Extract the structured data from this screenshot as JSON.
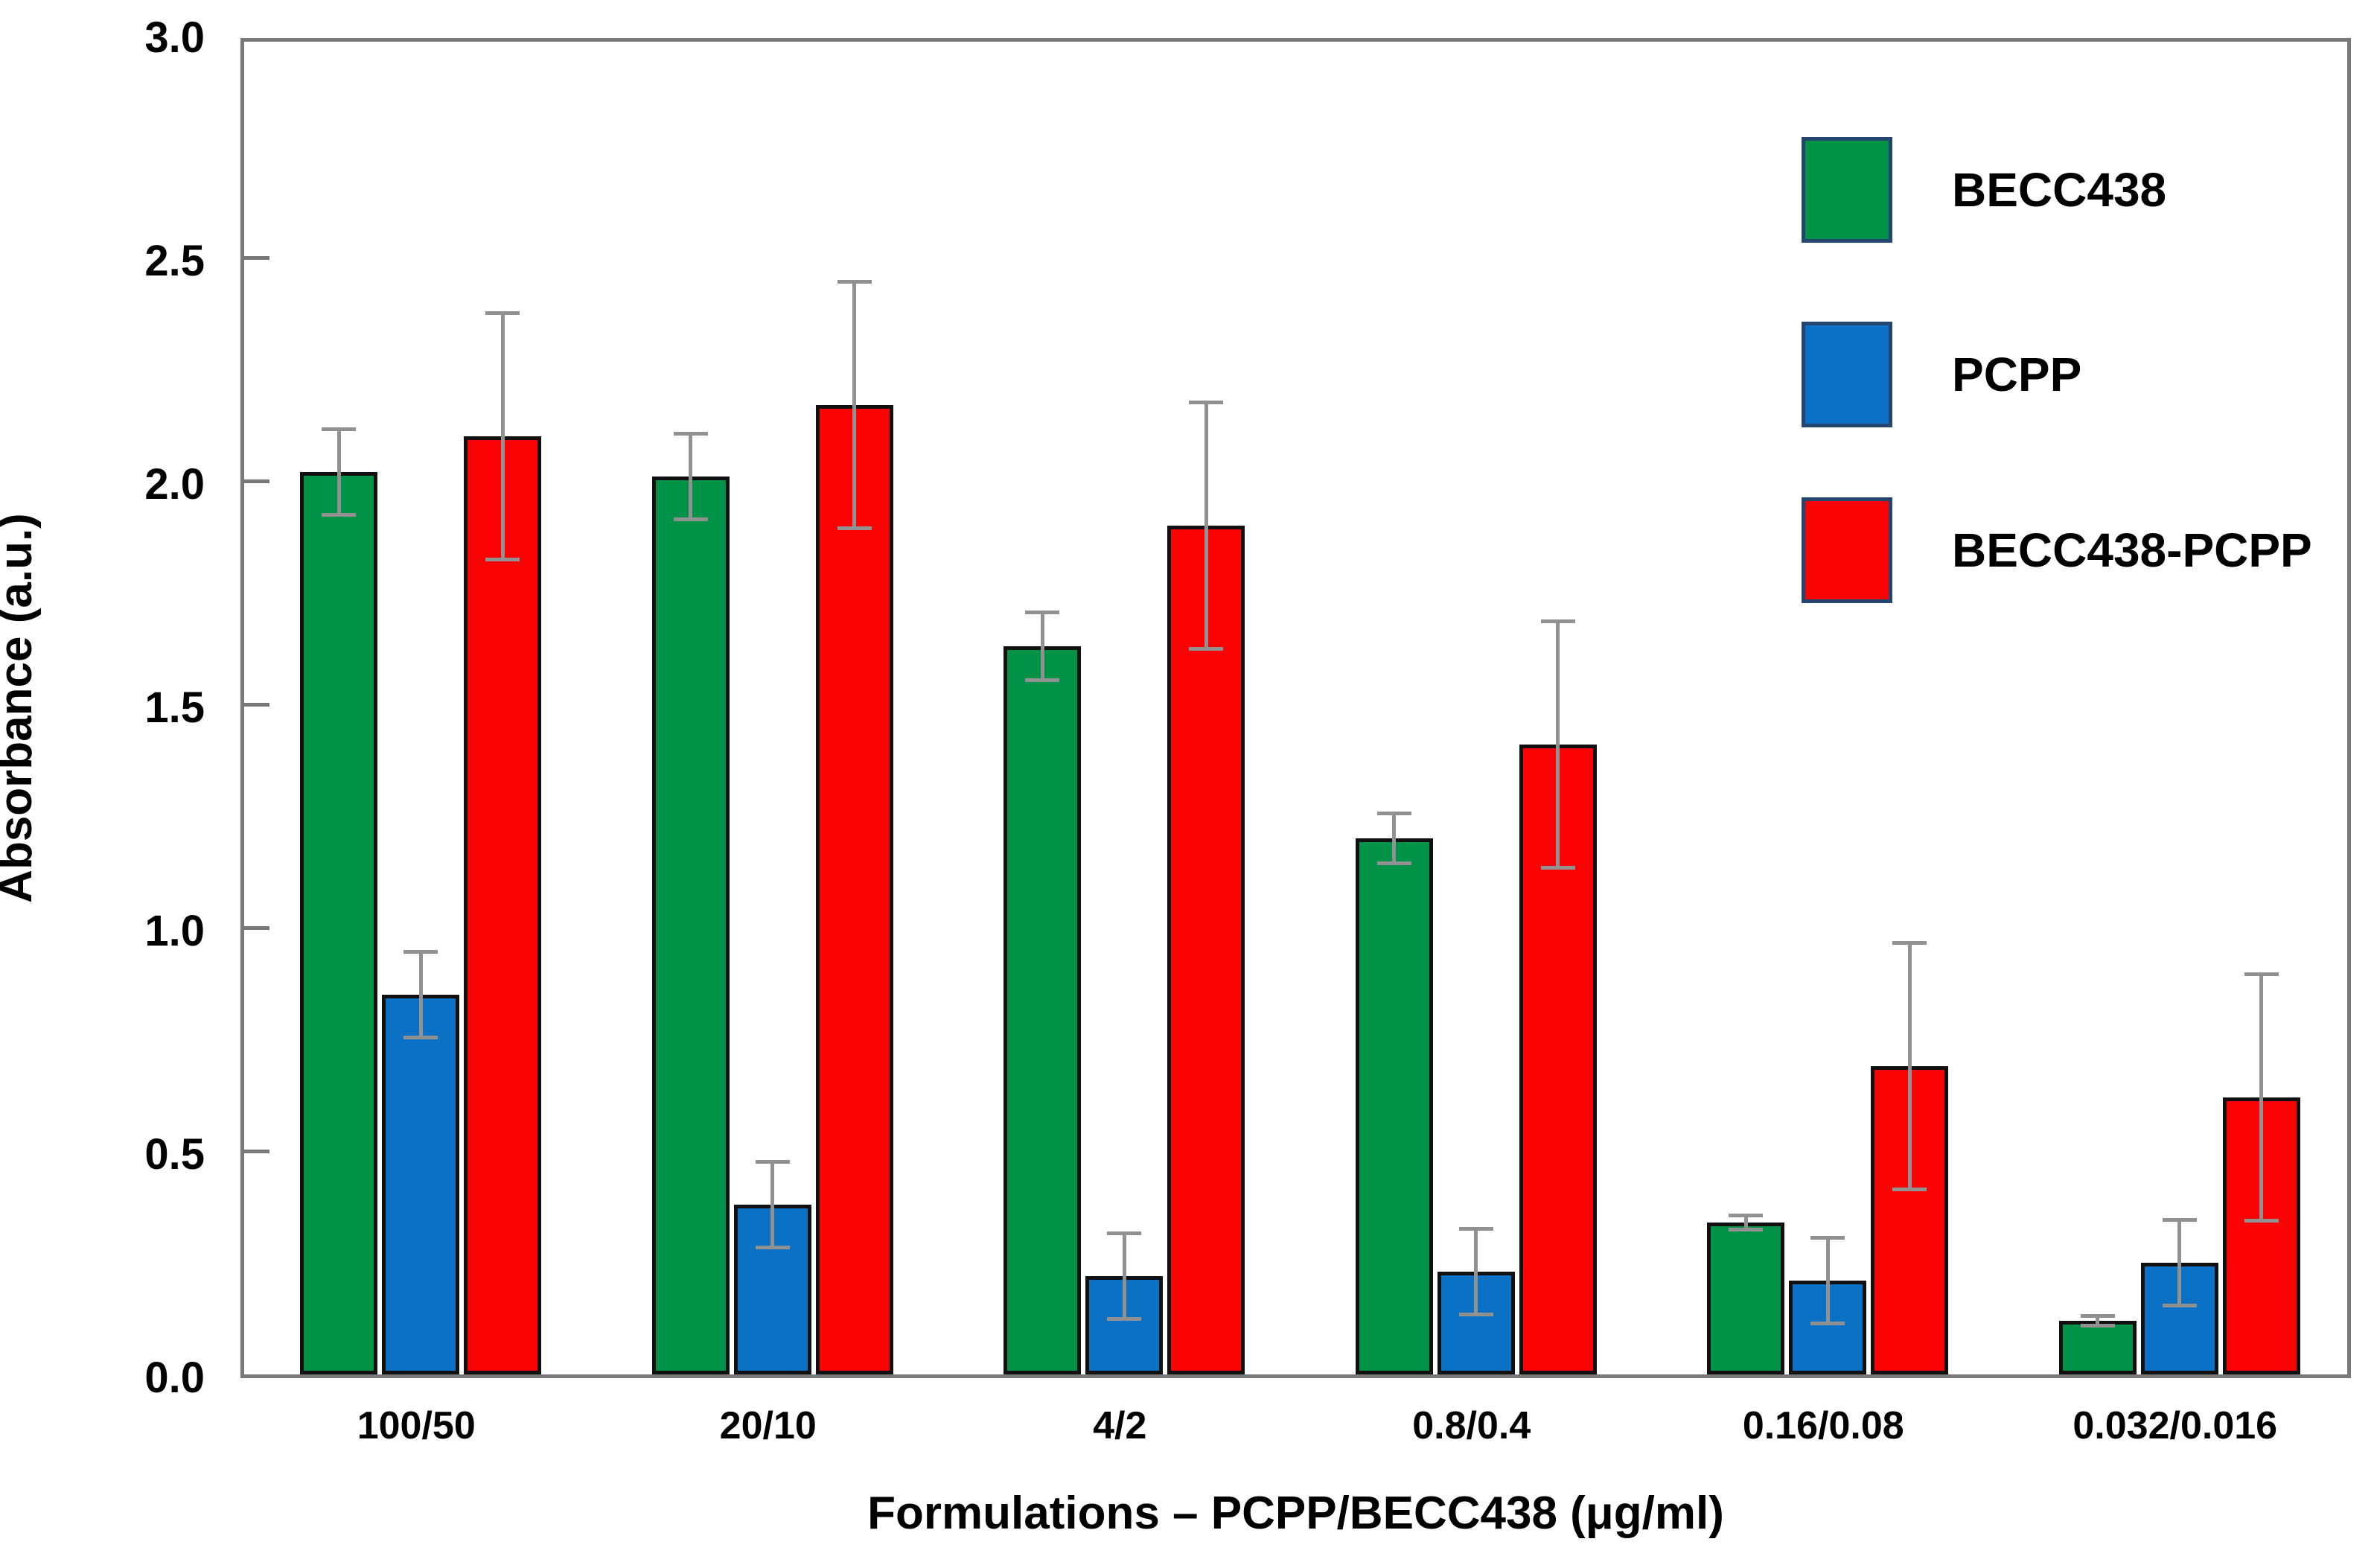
{
  "chart_data": {
    "type": "bar",
    "title": "",
    "xlabel": "Formulations – PCPP/BECC438 (μg/ml)",
    "ylabel": "Absorbance (a.u.)",
    "categories": [
      "100/50",
      "20/10",
      "4/2",
      "0.8/0.4",
      "0.16/0.08",
      "0.032/0.016"
    ],
    "series": [
      {
        "name": "BECC438",
        "color": "#009347",
        "values": [
          2.02,
          2.01,
          1.63,
          1.2,
          0.34,
          0.12
        ],
        "errors": [
          0.1,
          0.1,
          0.08,
          0.06,
          0.02,
          0.015
        ]
      },
      {
        "name": "PCPP",
        "color": "#0B71C4",
        "values": [
          0.85,
          0.38,
          0.22,
          0.23,
          0.21,
          0.25
        ],
        "errors": [
          0.1,
          0.1,
          0.1,
          0.1,
          0.1,
          0.1
        ]
      },
      {
        "name": "BECC438-PCPP",
        "color": "#FB0204",
        "values": [
          2.1,
          2.17,
          1.9,
          1.41,
          0.69,
          0.62
        ],
        "errors": [
          0.28,
          0.28,
          0.28,
          0.28,
          0.28,
          0.28
        ]
      }
    ],
    "ylim": [
      0,
      3
    ],
    "ytick_values": [
      0,
      0.5,
      1,
      1.5,
      2,
      2.5,
      3
    ],
    "ytick_labels": [
      "0.0",
      "0.5",
      "1.0",
      "1.5",
      "2.0",
      "2.5",
      "3.0"
    ],
    "grid": false,
    "legend_position": "top-right-inside",
    "error_bar_color": "#919191",
    "bar_outline_color": "#101010",
    "frame_color": "#787878"
  }
}
